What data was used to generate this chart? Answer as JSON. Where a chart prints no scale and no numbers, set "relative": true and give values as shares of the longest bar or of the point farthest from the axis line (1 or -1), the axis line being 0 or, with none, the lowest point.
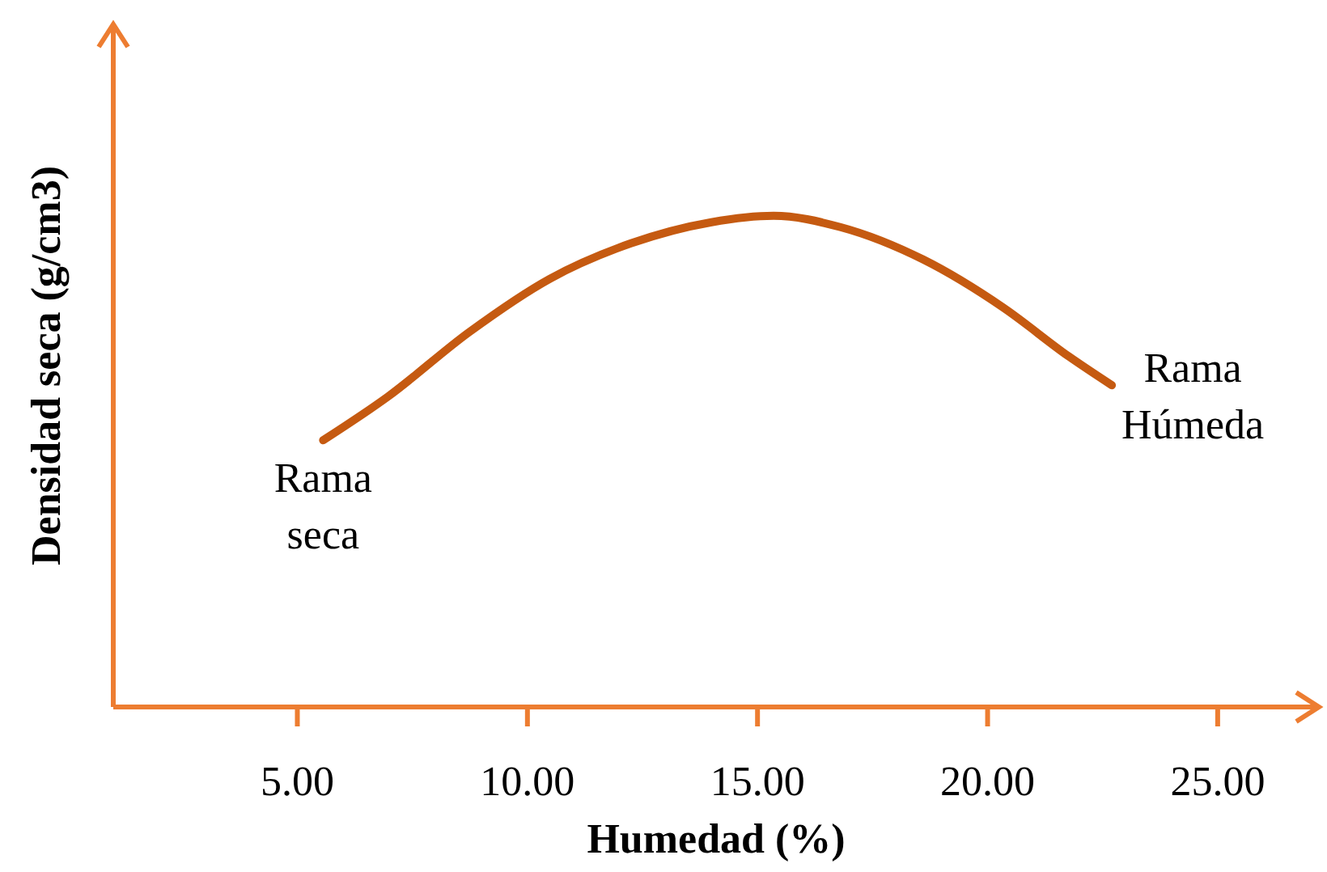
{
  "chart_data": {
    "type": "line",
    "relative": true,
    "xlabel": "Humedad (%)",
    "ylabel": "Densidad seca (g/cm3)",
    "xlim": [
      1,
      27.2
    ],
    "xticks": [
      {
        "value": 5,
        "label": "5.00"
      },
      {
        "value": 10,
        "label": "10.00"
      },
      {
        "value": 15,
        "label": "15.00"
      },
      {
        "value": 20,
        "label": "20.00"
      },
      {
        "value": 25,
        "label": "25.00"
      }
    ],
    "x": [
      5.56,
      6.97,
      8.73,
      10.49,
      12.25,
      14.0,
      15.35,
      16.8,
      18.6,
      20.35,
      21.76,
      22.7
    ],
    "series": [
      {
        "color": "#c55a11",
        "values": [
          0.543,
          0.632,
          0.763,
          0.872,
          0.944,
          0.987,
          1.0,
          0.977,
          0.911,
          0.8125,
          0.714,
          0.655
        ]
      }
    ],
    "annotations": [
      {
        "text": "Rama\nseca",
        "x": 5.56,
        "y": 0.543
      },
      {
        "text": "Rama\nHúmeda",
        "x": 22.7,
        "y": 0.655
      }
    ],
    "marker": "none",
    "line_style": "solid"
  }
}
